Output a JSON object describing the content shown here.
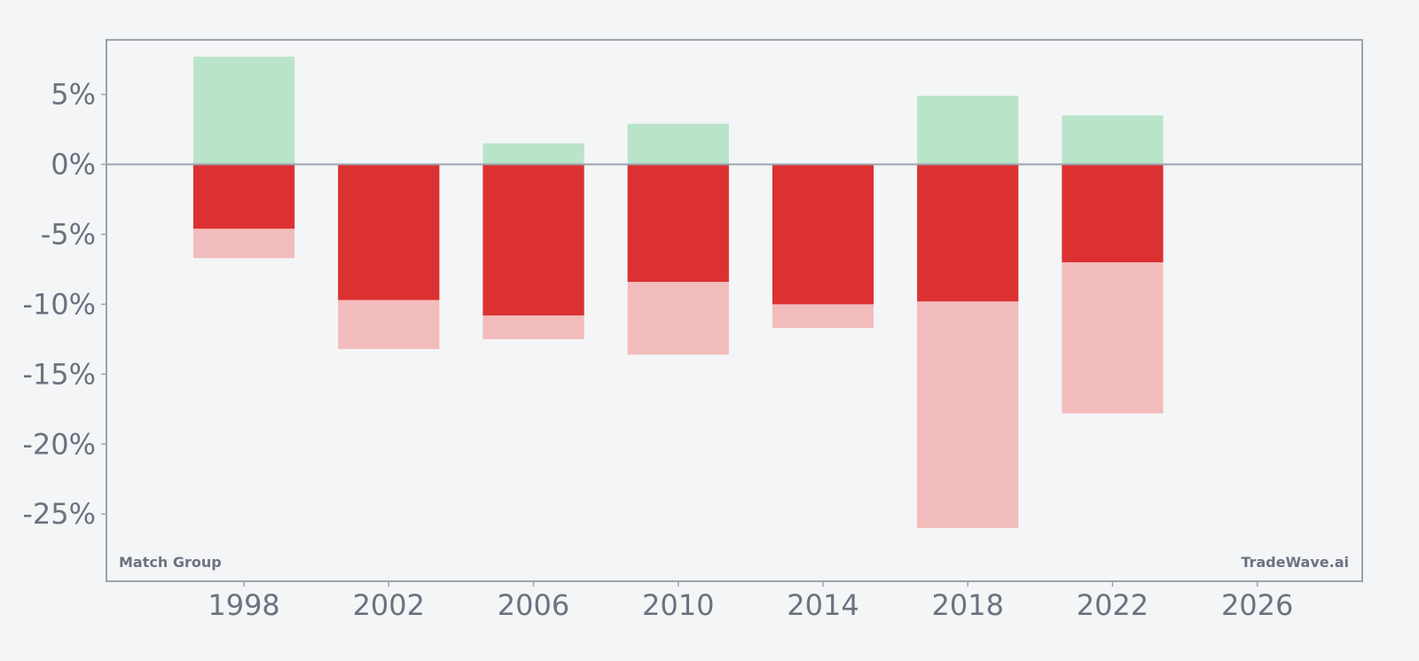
{
  "chart_data": {
    "type": "bar",
    "subtype": "floating range bars (positive green band above zero, negative red band below zero)",
    "x": [
      1998,
      2002,
      2006,
      2010,
      2014,
      2018,
      2022
    ],
    "series": [
      {
        "role": "upper",
        "color": "#b9e4c9",
        "values": [
          7.7,
          0.0,
          1.5,
          2.9,
          0.0,
          4.9,
          3.5
        ]
      },
      {
        "role": "lower-main",
        "color": "#dc3131",
        "values": [
          -4.6,
          -9.7,
          -10.8,
          -8.4,
          -10.0,
          -9.8,
          -7.0
        ]
      },
      {
        "role": "lower-extended",
        "color": "#f3bcbc",
        "values": [
          -6.7,
          -13.2,
          -12.5,
          -13.6,
          -11.7,
          -26.0,
          -17.8
        ]
      }
    ],
    "xlim": [
      1994.2,
      2028.9
    ],
    "ylim": [
      -29.8,
      8.9
    ],
    "xticks": [
      1998,
      2002,
      2006,
      2010,
      2014,
      2018,
      2022,
      2026
    ],
    "yticks": [
      5,
      0,
      -5,
      -10,
      -15,
      -20,
      -25
    ],
    "ytick_suffix": "%",
    "bar_width_years": 2.8,
    "grid": false,
    "zero_line": true,
    "colors": {
      "frame": "#9ca3af",
      "text": "#6b7280",
      "background": "#f4f5f7"
    }
  },
  "labels": {
    "company": "Match Group",
    "source": "TradeWave.ai"
  }
}
